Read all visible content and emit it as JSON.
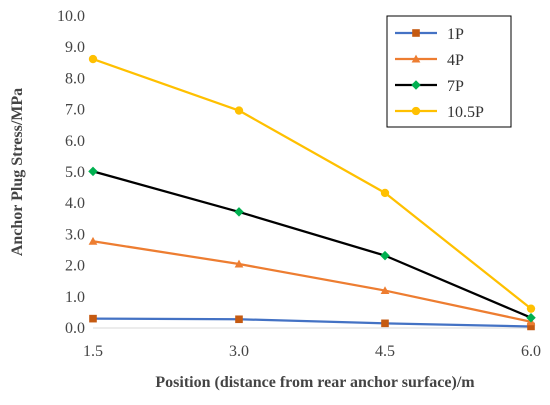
{
  "chart_data": {
    "type": "line",
    "title": "",
    "xlabel": "Position (distance from rear anchor surface)/m",
    "ylabel": "Anchor Plug Stress/MPa",
    "x": [
      1.5,
      3.0,
      4.5,
      6.0
    ],
    "x_tick_labels": [
      "1.5",
      "3.0",
      "4.5",
      "6.0"
    ],
    "xlim": [
      1.5,
      6.0
    ],
    "ylim": [
      0,
      10
    ],
    "y_tick_labels": [
      "0.0",
      "1.0",
      "2.0",
      "3.0",
      "4.0",
      "5.0",
      "6.0",
      "7.0",
      "8.0",
      "9.0",
      "10.0"
    ],
    "grid": false,
    "legend": "top-right",
    "series": [
      {
        "name": "1P",
        "color": "#4472C4",
        "marker_color": "#C55A11",
        "marker": "square",
        "values": [
          0.3,
          0.28,
          0.15,
          0.05
        ]
      },
      {
        "name": "4P",
        "color": "#ED7D31",
        "marker_color": "#ED7D31",
        "marker": "triangle",
        "values": [
          2.78,
          2.05,
          1.2,
          0.2
        ]
      },
      {
        "name": "7P",
        "color": "#000000",
        "marker_color": "#00B050",
        "marker": "diamond",
        "values": [
          5.02,
          3.72,
          2.32,
          0.33
        ]
      },
      {
        "name": "10.5P",
        "color": "#FFC000",
        "marker_color": "#FFC000",
        "marker": "circle",
        "values": [
          8.62,
          6.97,
          4.33,
          0.62
        ]
      }
    ]
  }
}
